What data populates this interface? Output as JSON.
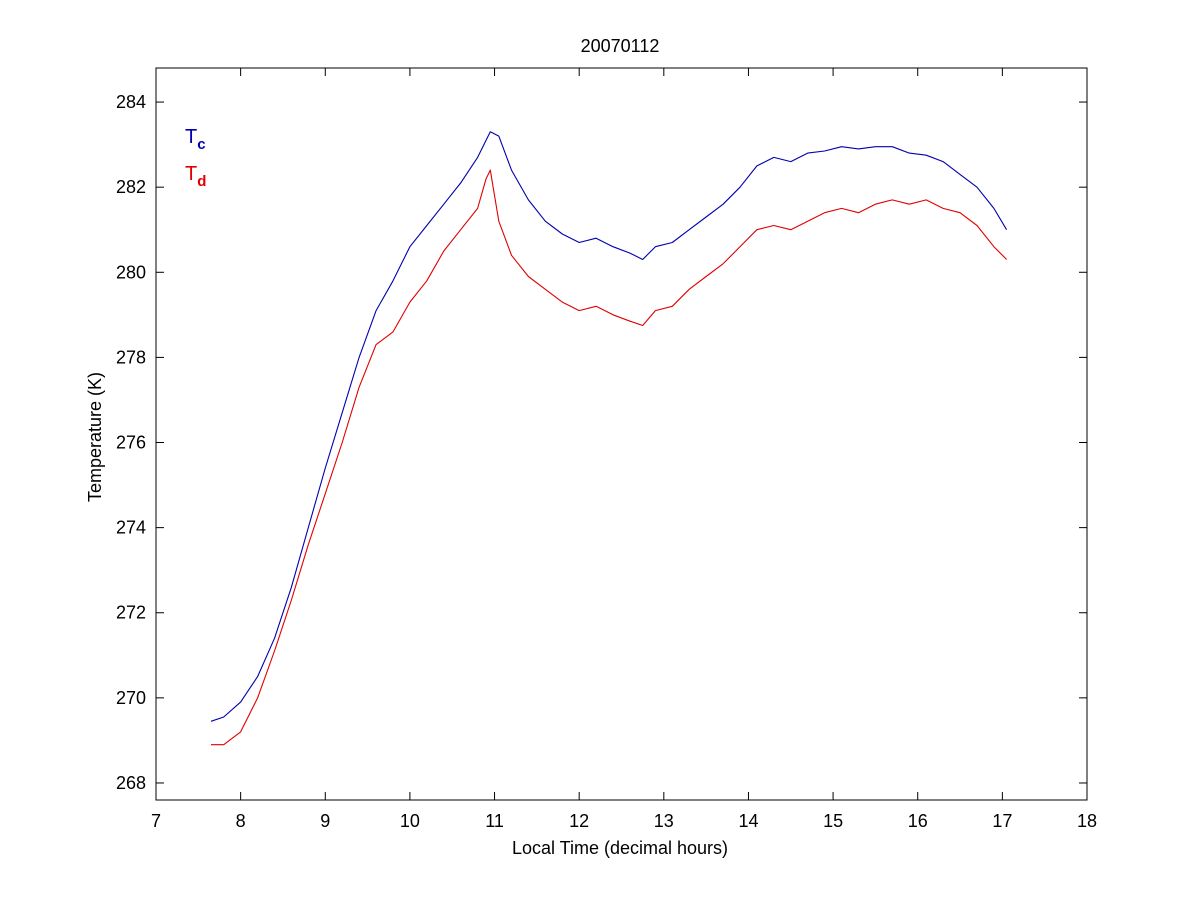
{
  "chart_data": {
    "type": "line",
    "title": "20070112",
    "xlabel": "Local Time (decimal hours)",
    "ylabel": "Temperature (K)",
    "xlim": [
      7,
      18
    ],
    "ylim": [
      267.6,
      284.8
    ],
    "xticks": [
      7,
      8,
      9,
      10,
      11,
      12,
      13,
      14,
      15,
      16,
      17,
      18
    ],
    "yticks": [
      268,
      270,
      272,
      274,
      276,
      278,
      280,
      282,
      284
    ],
    "grid": false,
    "legend_position": "top-left",
    "series": [
      {
        "name": "Tc",
        "label_main": "T",
        "label_sub": "c",
        "color": "#0000b0",
        "x": [
          7.65,
          7.8,
          8.0,
          8.2,
          8.4,
          8.6,
          8.8,
          9.0,
          9.2,
          9.4,
          9.6,
          9.8,
          10.0,
          10.2,
          10.4,
          10.6,
          10.8,
          10.95,
          11.05,
          11.2,
          11.4,
          11.6,
          11.8,
          12.0,
          12.2,
          12.4,
          12.6,
          12.75,
          12.9,
          13.1,
          13.3,
          13.5,
          13.7,
          13.9,
          14.1,
          14.3,
          14.5,
          14.7,
          14.9,
          15.1,
          15.3,
          15.5,
          15.7,
          15.9,
          16.1,
          16.3,
          16.5,
          16.7,
          16.9,
          17.05
        ],
        "y": [
          269.45,
          269.55,
          269.9,
          270.5,
          271.4,
          272.6,
          274.0,
          275.4,
          276.7,
          278.0,
          279.1,
          279.8,
          280.6,
          281.1,
          281.6,
          282.1,
          282.7,
          283.3,
          283.2,
          282.4,
          281.7,
          281.2,
          280.9,
          280.7,
          280.8,
          280.6,
          280.45,
          280.3,
          280.6,
          280.7,
          281.0,
          281.3,
          281.6,
          282.0,
          282.5,
          282.7,
          282.6,
          282.8,
          282.85,
          282.95,
          282.9,
          282.95,
          282.95,
          282.8,
          282.75,
          282.6,
          282.3,
          282.0,
          281.5,
          281.0
        ]
      },
      {
        "name": "Td",
        "label_main": "T",
        "label_sub": "d",
        "color": "#e00000",
        "x": [
          7.65,
          7.8,
          8.0,
          8.2,
          8.4,
          8.6,
          8.8,
          9.0,
          9.2,
          9.4,
          9.6,
          9.8,
          10.0,
          10.2,
          10.4,
          10.6,
          10.8,
          10.9,
          10.95,
          11.05,
          11.2,
          11.4,
          11.6,
          11.8,
          12.0,
          12.2,
          12.4,
          12.6,
          12.75,
          12.9,
          13.1,
          13.3,
          13.5,
          13.7,
          13.9,
          14.1,
          14.3,
          14.5,
          14.7,
          14.9,
          15.1,
          15.3,
          15.5,
          15.7,
          15.9,
          16.1,
          16.3,
          16.5,
          16.7,
          16.9,
          17.05
        ],
        "y": [
          268.9,
          268.9,
          269.2,
          270.0,
          271.1,
          272.3,
          273.6,
          274.8,
          276.0,
          277.3,
          278.3,
          278.6,
          279.3,
          279.8,
          280.5,
          281.0,
          281.5,
          282.2,
          282.4,
          281.2,
          280.4,
          279.9,
          279.6,
          279.3,
          279.1,
          279.2,
          279.0,
          278.85,
          278.75,
          279.1,
          279.2,
          279.6,
          279.9,
          280.2,
          280.6,
          281.0,
          281.1,
          281.0,
          281.2,
          281.4,
          281.5,
          281.4,
          281.6,
          281.7,
          281.6,
          281.7,
          281.5,
          281.4,
          281.1,
          280.6,
          280.3
        ]
      }
    ]
  }
}
